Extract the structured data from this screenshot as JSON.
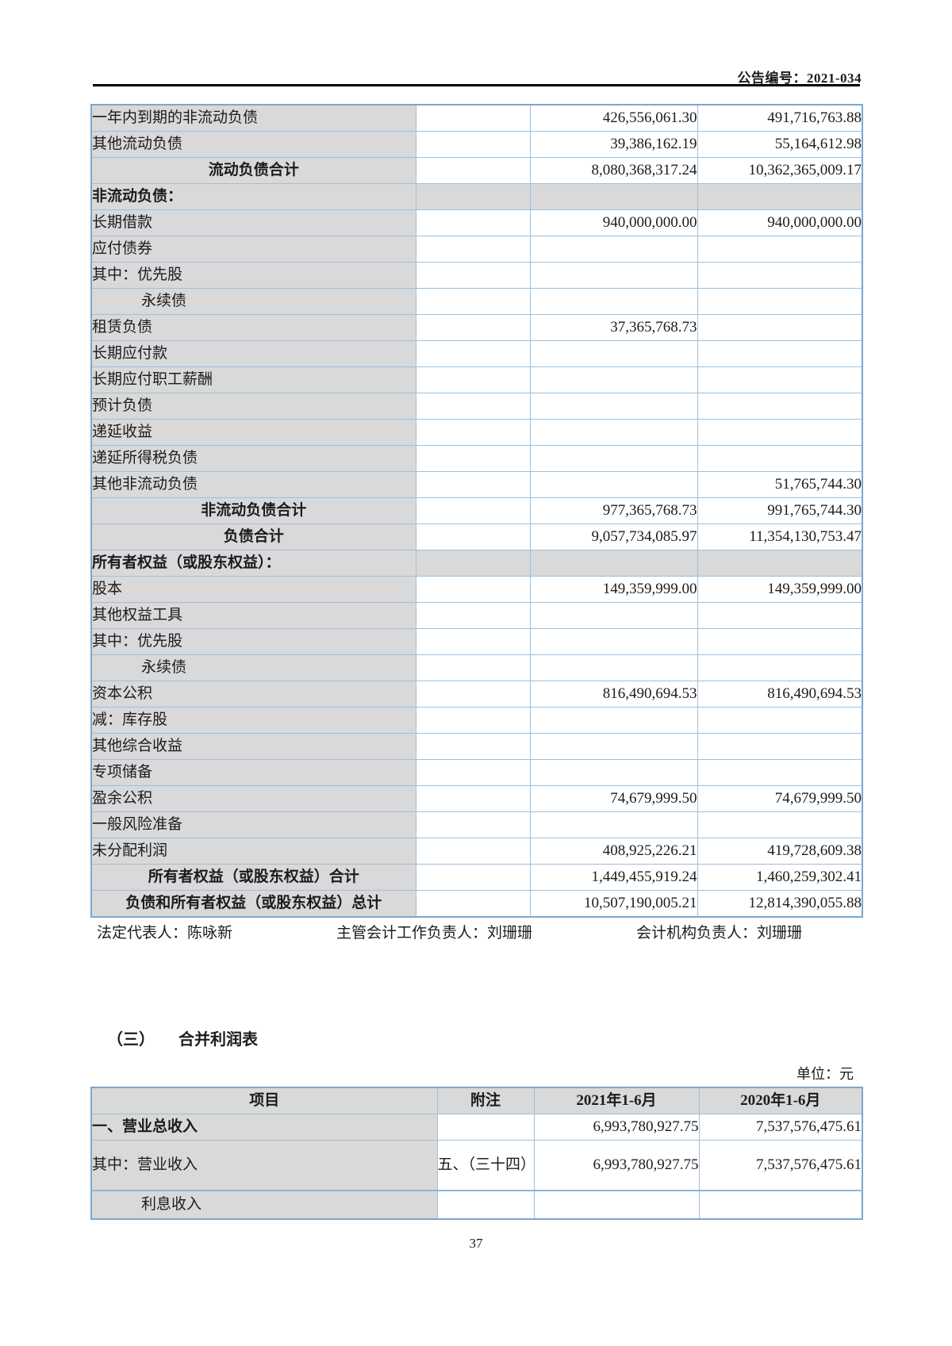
{
  "page": {
    "header_right": "公告编号：2021-034",
    "page_number": "37"
  },
  "signatures": {
    "legal_rep": "法定代表人：陈咏新",
    "accounting_head": "主管会计工作负责人：刘珊珊",
    "accounting_org_head": "会计机构负责人：刘珊珊"
  },
  "income_section": {
    "title": "（三）　　合并利润表",
    "unit": "单位：元"
  },
  "balance_table": {
    "rows": [
      {
        "name": "一年内到期的非流动负债",
        "note": "",
        "c1": "426,556,061.30",
        "c2": "491,716,763.88",
        "type": "item"
      },
      {
        "name": "其他流动负债",
        "note": "",
        "c1": "39,386,162.19",
        "c2": "55,164,612.98",
        "type": "item"
      },
      {
        "name": "流动负债合计",
        "note": "",
        "c1": "8,080,368,317.24",
        "c2": "10,362,365,009.17",
        "type": "total"
      },
      {
        "name": "非流动负债：",
        "note": "",
        "c1": "",
        "c2": "",
        "type": "section"
      },
      {
        "name": "长期借款",
        "note": "",
        "c1": "940,000,000.00",
        "c2": "940,000,000.00",
        "type": "item"
      },
      {
        "name": "应付债券",
        "note": "",
        "c1": "",
        "c2": "",
        "type": "item"
      },
      {
        "name": "其中：优先股",
        "note": "",
        "c1": "",
        "c2": "",
        "type": "item"
      },
      {
        "name": "永续债",
        "note": "",
        "c1": "",
        "c2": "",
        "type": "item indent"
      },
      {
        "name": "租赁负债",
        "note": "",
        "c1": "37,365,768.73",
        "c2": "",
        "type": "item"
      },
      {
        "name": "长期应付款",
        "note": "",
        "c1": "",
        "c2": "",
        "type": "item"
      },
      {
        "name": "长期应付职工薪酬",
        "note": "",
        "c1": "",
        "c2": "",
        "type": "item"
      },
      {
        "name": "预计负债",
        "note": "",
        "c1": "",
        "c2": "",
        "type": "item"
      },
      {
        "name": "递延收益",
        "note": "",
        "c1": "",
        "c2": "",
        "type": "item"
      },
      {
        "name": "递延所得税负债",
        "note": "",
        "c1": "",
        "c2": "",
        "type": "item"
      },
      {
        "name": "其他非流动负债",
        "note": "",
        "c1": "",
        "c2": "51,765,744.30",
        "type": "item"
      },
      {
        "name": "非流动负债合计",
        "note": "",
        "c1": "977,365,768.73",
        "c2": "991,765,744.30",
        "type": "total"
      },
      {
        "name": "负债合计",
        "note": "",
        "c1": "9,057,734,085.97",
        "c2": "11,354,130,753.47",
        "type": "total"
      },
      {
        "name": "所有者权益（或股东权益）：",
        "note": "",
        "c1": "",
        "c2": "",
        "type": "section"
      },
      {
        "name": "股本",
        "note": "",
        "c1": "149,359,999.00",
        "c2": "149,359,999.00",
        "type": "item"
      },
      {
        "name": "其他权益工具",
        "note": "",
        "c1": "",
        "c2": "",
        "type": "item"
      },
      {
        "name": "其中：优先股",
        "note": "",
        "c1": "",
        "c2": "",
        "type": "item"
      },
      {
        "name": "永续债",
        "note": "",
        "c1": "",
        "c2": "",
        "type": "item indent"
      },
      {
        "name": "资本公积",
        "note": "",
        "c1": "816,490,694.53",
        "c2": "816,490,694.53",
        "type": "item"
      },
      {
        "name": "减：库存股",
        "note": "",
        "c1": "",
        "c2": "",
        "type": "item"
      },
      {
        "name": "其他综合收益",
        "note": "",
        "c1": "",
        "c2": "",
        "type": "item"
      },
      {
        "name": "专项储备",
        "note": "",
        "c1": "",
        "c2": "",
        "type": "item"
      },
      {
        "name": "盈余公积",
        "note": "",
        "c1": "74,679,999.50",
        "c2": "74,679,999.50",
        "type": "item"
      },
      {
        "name": "一般风险准备",
        "note": "",
        "c1": "",
        "c2": "",
        "type": "item"
      },
      {
        "name": "未分配利润",
        "note": "",
        "c1": "408,925,226.21",
        "c2": "419,728,609.38",
        "type": "item"
      },
      {
        "name": "所有者权益（或股东权益）合计",
        "note": "",
        "c1": "1,449,455,919.24",
        "c2": "1,460,259,302.41",
        "type": "total"
      },
      {
        "name": "负债和所有者权益（或股东权益）总计",
        "note": "",
        "c1": "10,507,190,005.21",
        "c2": "12,814,390,055.88",
        "type": "total"
      }
    ]
  },
  "income_table": {
    "headers": [
      "项目",
      "附注",
      "2021年1-6月",
      "2020年1-6月"
    ],
    "rows": [
      {
        "name": "一、营业总收入",
        "note": "",
        "c1": "6,993,780,927.75",
        "c2": "7,537,576,475.61",
        "type": "bold"
      },
      {
        "name": "其中：营业收入",
        "note": "五、（三十四）",
        "c1": "6,993,780,927.75",
        "c2": "7,537,576,475.61",
        "type": "note-row"
      },
      {
        "name": "利息收入",
        "note": "",
        "c1": "",
        "c2": "",
        "type": "indent last"
      }
    ]
  }
}
